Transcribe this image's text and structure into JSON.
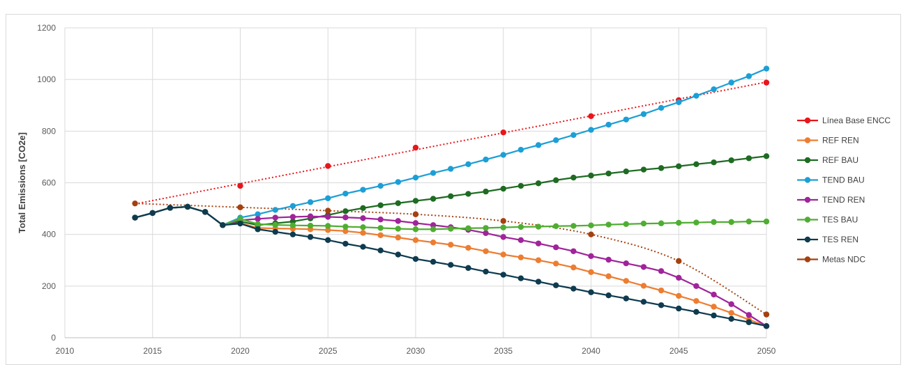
{
  "chart_data": {
    "type": "line",
    "title": "",
    "xlabel": "",
    "ylabel": "Total Emissions [CO2e]",
    "xlim": [
      2010,
      2050
    ],
    "ylim": [
      0,
      1200
    ],
    "x_ticks": [
      "2010",
      "2015",
      "2020",
      "2025",
      "2030",
      "2035",
      "2040",
      "2045",
      "2050"
    ],
    "y_ticks": [
      "0",
      "200",
      "400",
      "600",
      "800",
      "1000",
      "1200"
    ],
    "grid": true,
    "legend_position": "right",
    "series": [
      {
        "name": "Línea Base ENCC",
        "color": "#e8161b",
        "x": [
          2020,
          2025,
          2030,
          2035,
          2040,
          2045,
          2050
        ],
        "y": [
          588,
          665,
          736,
          795,
          858,
          920,
          988
        ],
        "trendline": "linear",
        "trend_from": [
          2014,
          518
        ],
        "trend_to": [
          2050,
          990
        ]
      },
      {
        "name": "REF REN",
        "color": "#ed7d31",
        "x": [
          2014,
          2015,
          2016,
          2017,
          2018,
          2019,
          2020,
          2021,
          2022,
          2023,
          2024,
          2025,
          2026,
          2027,
          2028,
          2029,
          2030,
          2031,
          2032,
          2033,
          2034,
          2035,
          2036,
          2037,
          2038,
          2039,
          2040,
          2041,
          2042,
          2043,
          2044,
          2045,
          2046,
          2047,
          2048,
          2049,
          2050
        ],
        "y": [
          465,
          483,
          503,
          507,
          487,
          436,
          444,
          425,
          423,
          422,
          420,
          417,
          413,
          406,
          397,
          388,
          378,
          369,
          360,
          348,
          335,
          322,
          311,
          300,
          287,
          272,
          254,
          238,
          220,
          201,
          183,
          162,
          142,
          120,
          96,
          70,
          45
        ]
      },
      {
        "name": "REF BAU",
        "color": "#1e6b22",
        "x": [
          2014,
          2015,
          2016,
          2017,
          2018,
          2019,
          2020,
          2021,
          2022,
          2023,
          2024,
          2025,
          2026,
          2027,
          2028,
          2029,
          2030,
          2031,
          2032,
          2033,
          2034,
          2035,
          2036,
          2037,
          2038,
          2039,
          2040,
          2041,
          2042,
          2043,
          2044,
          2045,
          2046,
          2047,
          2048,
          2049,
          2050
        ],
        "y": [
          465,
          483,
          503,
          507,
          487,
          436,
          450,
          436,
          443,
          450,
          462,
          475,
          490,
          502,
          513,
          521,
          530,
          538,
          548,
          557,
          566,
          577,
          588,
          598,
          610,
          620,
          628,
          636,
          644,
          651,
          657,
          664,
          672,
          679,
          687,
          695,
          703
        ]
      },
      {
        "name": "TEND BAU",
        "color": "#1c9fd6",
        "x": [
          2014,
          2015,
          2016,
          2017,
          2018,
          2019,
          2020,
          2021,
          2022,
          2023,
          2024,
          2025,
          2026,
          2027,
          2028,
          2029,
          2030,
          2031,
          2032,
          2033,
          2034,
          2035,
          2036,
          2037,
          2038,
          2039,
          2040,
          2041,
          2042,
          2043,
          2044,
          2045,
          2046,
          2047,
          2048,
          2049,
          2050
        ],
        "y": [
          465,
          483,
          503,
          507,
          487,
          436,
          465,
          478,
          495,
          510,
          525,
          540,
          558,
          573,
          588,
          603,
          620,
          638,
          654,
          672,
          690,
          708,
          728,
          746,
          765,
          785,
          805,
          825,
          845,
          866,
          890,
          912,
          937,
          962,
          988,
          1013,
          1042
        ]
      },
      {
        "name": "TEND REN",
        "color": "#a0249a",
        "x": [
          2014,
          2015,
          2016,
          2017,
          2018,
          2019,
          2020,
          2021,
          2022,
          2023,
          2024,
          2025,
          2026,
          2027,
          2028,
          2029,
          2030,
          2031,
          2032,
          2033,
          2034,
          2035,
          2036,
          2037,
          2038,
          2039,
          2040,
          2041,
          2042,
          2043,
          2044,
          2045,
          2046,
          2047,
          2048,
          2049,
          2050
        ],
        "y": [
          465,
          483,
          503,
          507,
          487,
          436,
          455,
          460,
          465,
          468,
          470,
          468,
          466,
          463,
          458,
          452,
          444,
          436,
          428,
          418,
          405,
          390,
          378,
          365,
          350,
          335,
          316,
          302,
          288,
          274,
          258,
          232,
          200,
          167,
          130,
          88,
          45
        ]
      },
      {
        "name": "TES BAU",
        "color": "#4fae32",
        "x": [
          2014,
          2015,
          2016,
          2017,
          2018,
          2019,
          2020,
          2021,
          2022,
          2023,
          2024,
          2025,
          2026,
          2027,
          2028,
          2029,
          2030,
          2031,
          2032,
          2033,
          2034,
          2035,
          2036,
          2037,
          2038,
          2039,
          2040,
          2041,
          2042,
          2043,
          2044,
          2045,
          2046,
          2047,
          2048,
          2049,
          2050
        ],
        "y": [
          465,
          483,
          503,
          507,
          487,
          436,
          460,
          440,
          437,
          435,
          434,
          433,
          430,
          428,
          425,
          422,
          420,
          420,
          422,
          424,
          425,
          427,
          429,
          430,
          432,
          433,
          435,
          438,
          440,
          442,
          443,
          445,
          446,
          448,
          448,
          450,
          450
        ]
      },
      {
        "name": "TES REN",
        "color": "#0e3b4f",
        "x": [
          2014,
          2015,
          2016,
          2017,
          2018,
          2019,
          2020,
          2021,
          2022,
          2023,
          2024,
          2025,
          2026,
          2027,
          2028,
          2029,
          2030,
          2031,
          2032,
          2033,
          2034,
          2035,
          2036,
          2037,
          2038,
          2039,
          2040,
          2041,
          2042,
          2043,
          2044,
          2045,
          2046,
          2047,
          2048,
          2049,
          2050
        ],
        "y": [
          465,
          483,
          503,
          507,
          487,
          436,
          442,
          420,
          410,
          400,
          390,
          378,
          364,
          352,
          338,
          322,
          305,
          294,
          282,
          270,
          256,
          244,
          230,
          217,
          203,
          190,
          176,
          164,
          152,
          139,
          126,
          113,
          100,
          86,
          73,
          60,
          45
        ]
      },
      {
        "name": "Metas NDC",
        "color": "#a5400f",
        "x": [
          2014,
          2020,
          2025,
          2030,
          2035,
          2040,
          2045,
          2050
        ],
        "y": [
          520,
          505,
          492,
          478,
          452,
          400,
          297,
          90
        ],
        "trendline": "curve"
      }
    ]
  }
}
